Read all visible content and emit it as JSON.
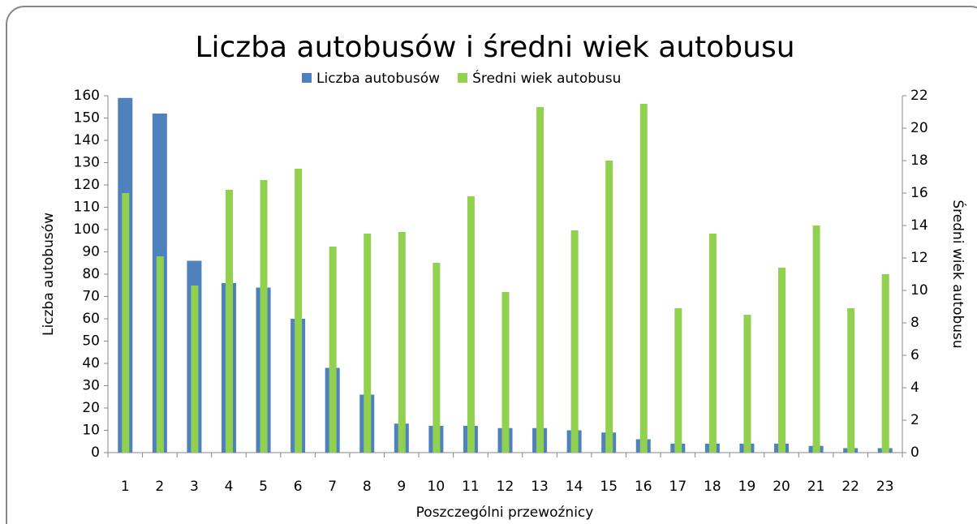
{
  "chart_data": {
    "type": "bar",
    "title": "Liczba autobusów i średni wiek autobusu",
    "x_label": "Poszczególni przewoźnicy",
    "y_label": "Liczba autobusów",
    "y2_label": "Średni wiek autobusu",
    "categories": [
      "1",
      "2",
      "3",
      "4",
      "5",
      "6",
      "7",
      "8",
      "9",
      "10",
      "11",
      "12",
      "13",
      "14",
      "15",
      "16",
      "17",
      "18",
      "19",
      "20",
      "21",
      "22",
      "23"
    ],
    "series": [
      {
        "name": "Liczba autobusów",
        "color": "#4f81bd",
        "values": [
          159,
          152,
          86,
          76,
          74,
          60,
          38,
          26,
          13,
          12,
          12,
          11,
          11,
          10,
          9,
          6,
          4,
          4,
          4,
          4,
          3,
          2,
          2
        ]
      },
      {
        "name": "Średni wiek autobusu",
        "color": "#92d050",
        "axis": "y2",
        "values": [
          16,
          12.1,
          10.3,
          16.2,
          16.8,
          17.5,
          12.7,
          13.5,
          13.6,
          11.7,
          15.8,
          9.9,
          21.3,
          13.7,
          18,
          21.5,
          8.9,
          13.5,
          8.5,
          11.4,
          14,
          8.9,
          11
        ]
      }
    ],
    "ylim": [
      0,
      160
    ],
    "yticks": [
      0,
      10,
      20,
      30,
      40,
      50,
      60,
      70,
      80,
      90,
      100,
      110,
      120,
      130,
      140,
      150,
      160
    ],
    "y2lim": [
      0,
      22
    ],
    "y2ticks": [
      0,
      2,
      4,
      6,
      8,
      10,
      12,
      14,
      16,
      18,
      20,
      22
    ],
    "grid": false,
    "legend": "top"
  }
}
